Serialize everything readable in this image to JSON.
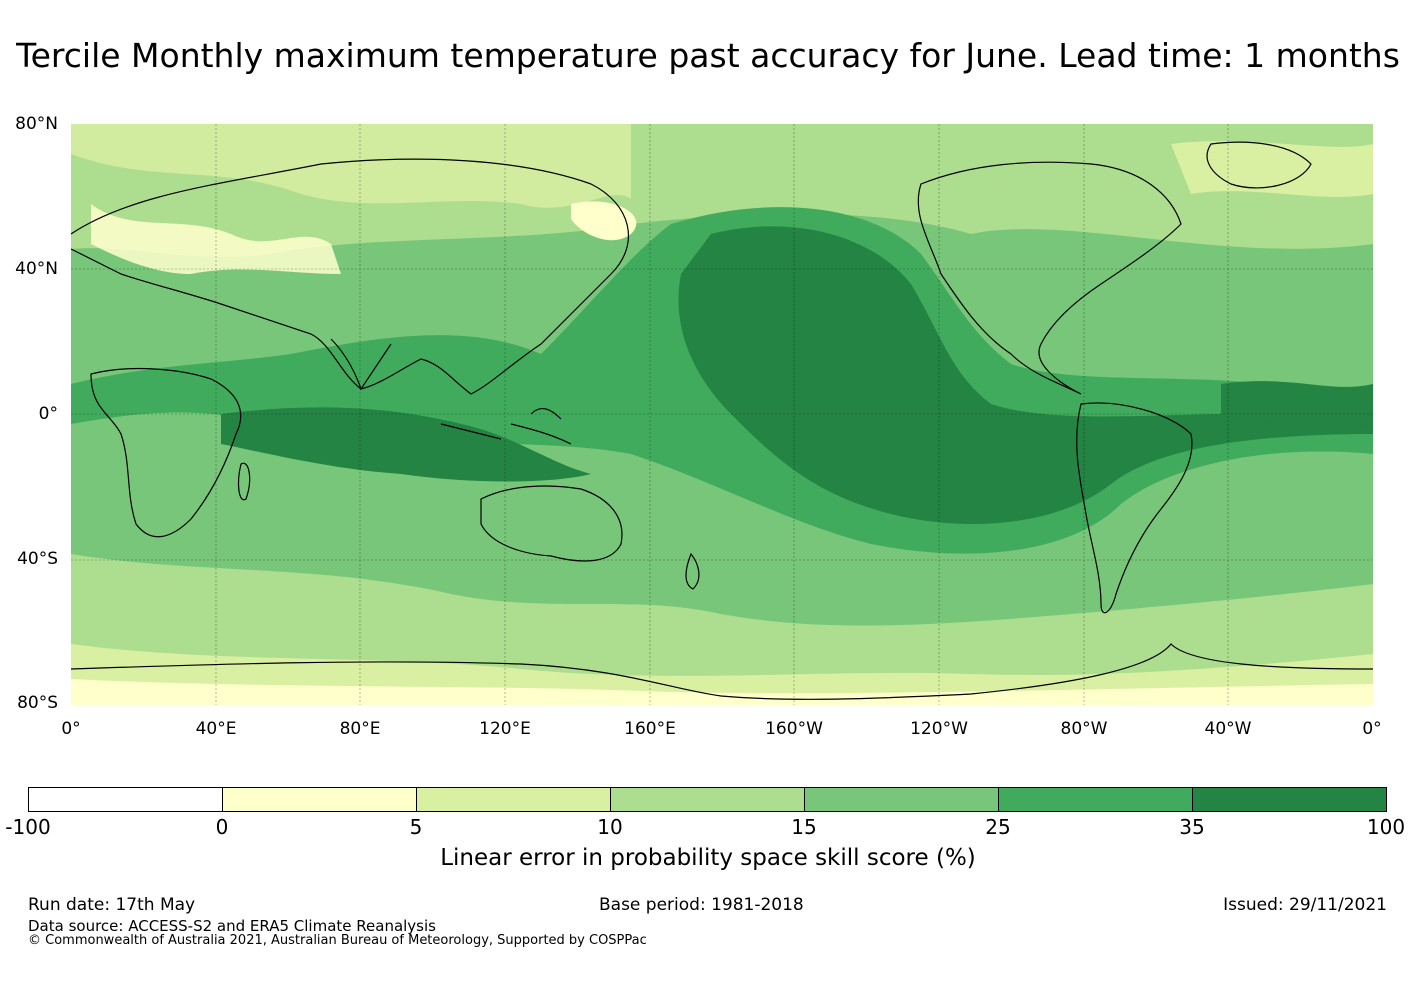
{
  "title": "Tercile Monthly maximum temperature past accuracy for June. Lead time: 1 months",
  "map": {
    "lat_labels": [
      "80°N",
      "40°N",
      "0°",
      "40°S",
      "80°S"
    ],
    "lon_labels": [
      "0°",
      "40°E",
      "80°E",
      "120°E",
      "160°E",
      "160°W",
      "120°W",
      "80°W",
      "40°W",
      "0°"
    ],
    "projection": "equirectangular, centered on 180°",
    "extent": {
      "lon": [
        0,
        360
      ],
      "lat": [
        -80,
        80
      ]
    },
    "grid": true,
    "coastlines": true
  },
  "colorbar": {
    "title": "Linear error in probability space skill score (%)",
    "ticks": [
      "-100",
      "0",
      "5",
      "10",
      "15",
      "25",
      "35",
      "100"
    ],
    "colors": [
      "#ffffff",
      "#ffffcc",
      "#d9f0a3",
      "#addd8e",
      "#78c679",
      "#41ab5d",
      "#238443"
    ]
  },
  "footer": {
    "run_date": "Run date: 17th May",
    "base_period": "Base period: 1981-2018",
    "issued": "Issued: 29/11/2021",
    "data_source": "Data source: ACCESS-S2 and ERA5 Climate Reanalysis",
    "copyright": "© Commonwealth of Australia 2021, Australian Bureau of Meteorology, Supported by COSPPac"
  }
}
